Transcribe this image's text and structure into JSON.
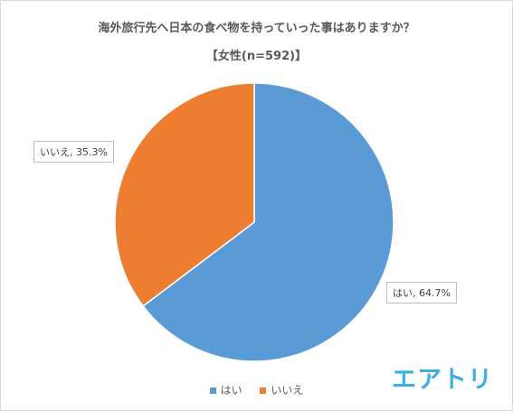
{
  "chart_data": {
    "type": "pie",
    "title": "海外旅行先へ日本の食べ物を持っていった事はありますか？",
    "subtitle": "【女性(n=592)】",
    "slices": [
      {
        "label": "はい",
        "value": 64.7,
        "data_label": "はい, 64.7%",
        "color": "#5b9bd5"
      },
      {
        "label": "いいえ",
        "value": 35.3,
        "data_label": "いいえ, 35.3%",
        "color": "#ed7d31"
      }
    ],
    "legend": {
      "position": "bottom",
      "entries": [
        "はい",
        "いいえ"
      ]
    }
  },
  "brand": {
    "logo_text": "エアトリ",
    "color": "#41aee3"
  }
}
